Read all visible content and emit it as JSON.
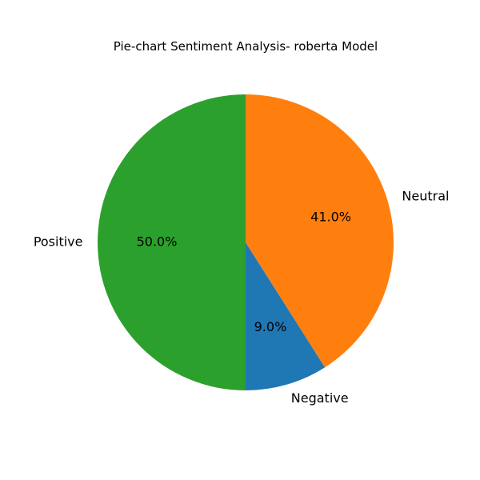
{
  "chart_data": {
    "type": "pie",
    "title": "Pie-chart Sentiment Analysis- roberta Model",
    "start_angle_deg": 270,
    "direction": "counterclockwise",
    "slices": [
      {
        "label": "Negative",
        "value": 9.0,
        "pct_label": "9.0%",
        "color": "#1f77b4"
      },
      {
        "label": "Neutral",
        "value": 41.0,
        "pct_label": "41.0%",
        "color": "#ff7f0e"
      },
      {
        "label": "Positive",
        "value": 50.0,
        "pct_label": "50.0%",
        "color": "#2ca02c"
      }
    ],
    "legend": "none"
  }
}
